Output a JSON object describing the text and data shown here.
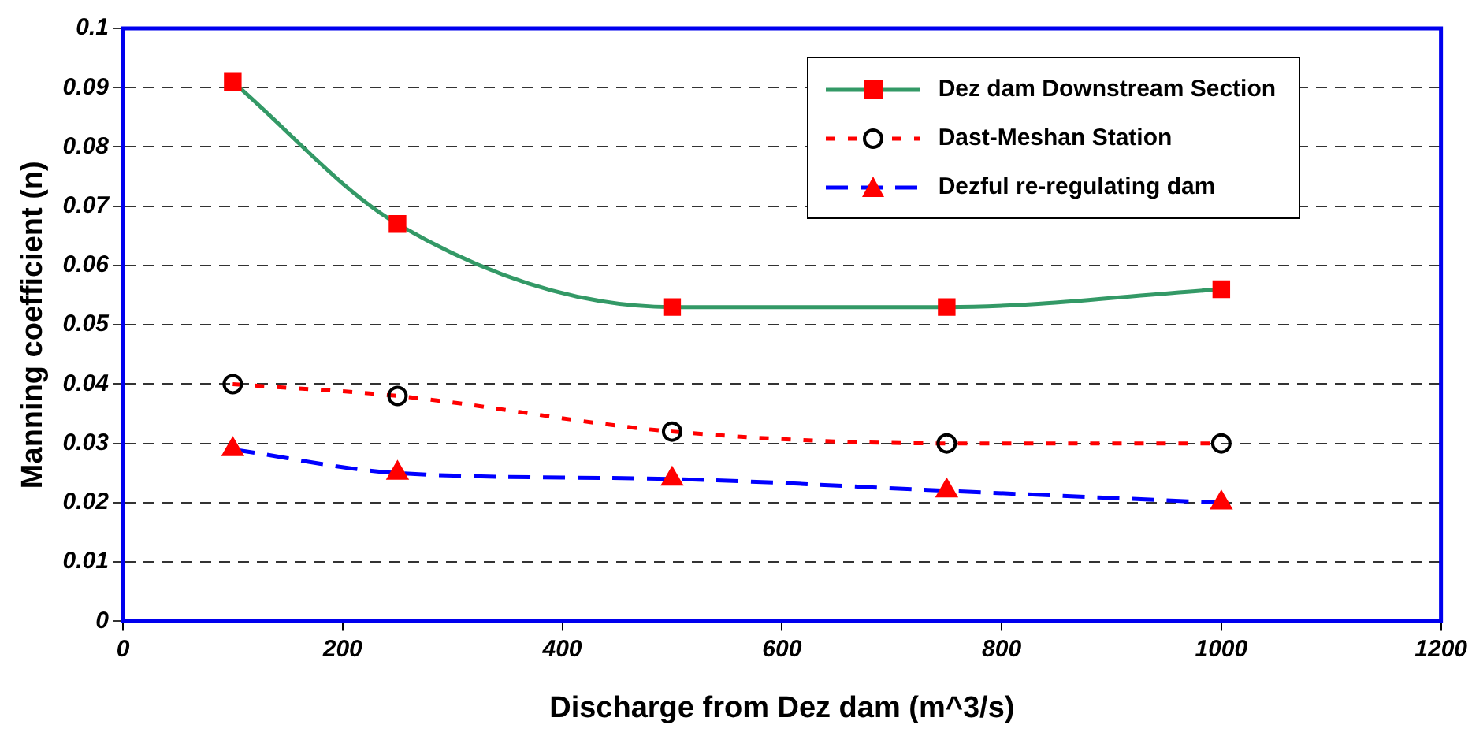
{
  "chart_data": {
    "type": "line",
    "xlabel": "Discharge from Dez dam (m^3/s)",
    "ylabel": "Manning coefficient (n)",
    "x": [
      100,
      250,
      500,
      750,
      1000
    ],
    "series": [
      {
        "name": "Dez dam Downstream Section",
        "color": "#339966",
        "colors": [
          "#ff0000",
          "#ff0000",
          "#ff0000",
          "#ff0000",
          "#ff0000"
        ],
        "marker": "square",
        "line_style": "solid",
        "values": [
          0.091,
          0.067,
          0.053,
          0.053,
          0.056
        ]
      },
      {
        "name": "Dast-Meshan Station",
        "color": "#ff0000",
        "colors": [
          "#000000",
          "#000000",
          "#000000",
          "#000000",
          "#000000"
        ],
        "marker": "circle",
        "line_style": "dotted",
        "values": [
          0.04,
          0.038,
          0.032,
          0.03,
          0.03
        ]
      },
      {
        "name": "Dezful re-regulating dam",
        "color": "#0000ff",
        "colors": [
          "#ff0000",
          "#ff0000",
          "#ff0000",
          "#ff0000",
          "#ff0000"
        ],
        "marker": "triangle",
        "line_style": "dashed",
        "values": [
          0.029,
          0.025,
          0.024,
          0.022,
          0.02
        ]
      }
    ],
    "xlim": [
      0,
      1200
    ],
    "xticks": [
      0,
      200,
      400,
      600,
      800,
      1000,
      1200
    ],
    "ylim": [
      0,
      0.1
    ],
    "yticks": [
      0,
      0.01,
      0.02,
      0.03,
      0.04,
      0.05,
      0.06,
      0.07,
      0.08,
      0.09,
      0.1
    ],
    "grid": "y",
    "legend": "top right"
  }
}
